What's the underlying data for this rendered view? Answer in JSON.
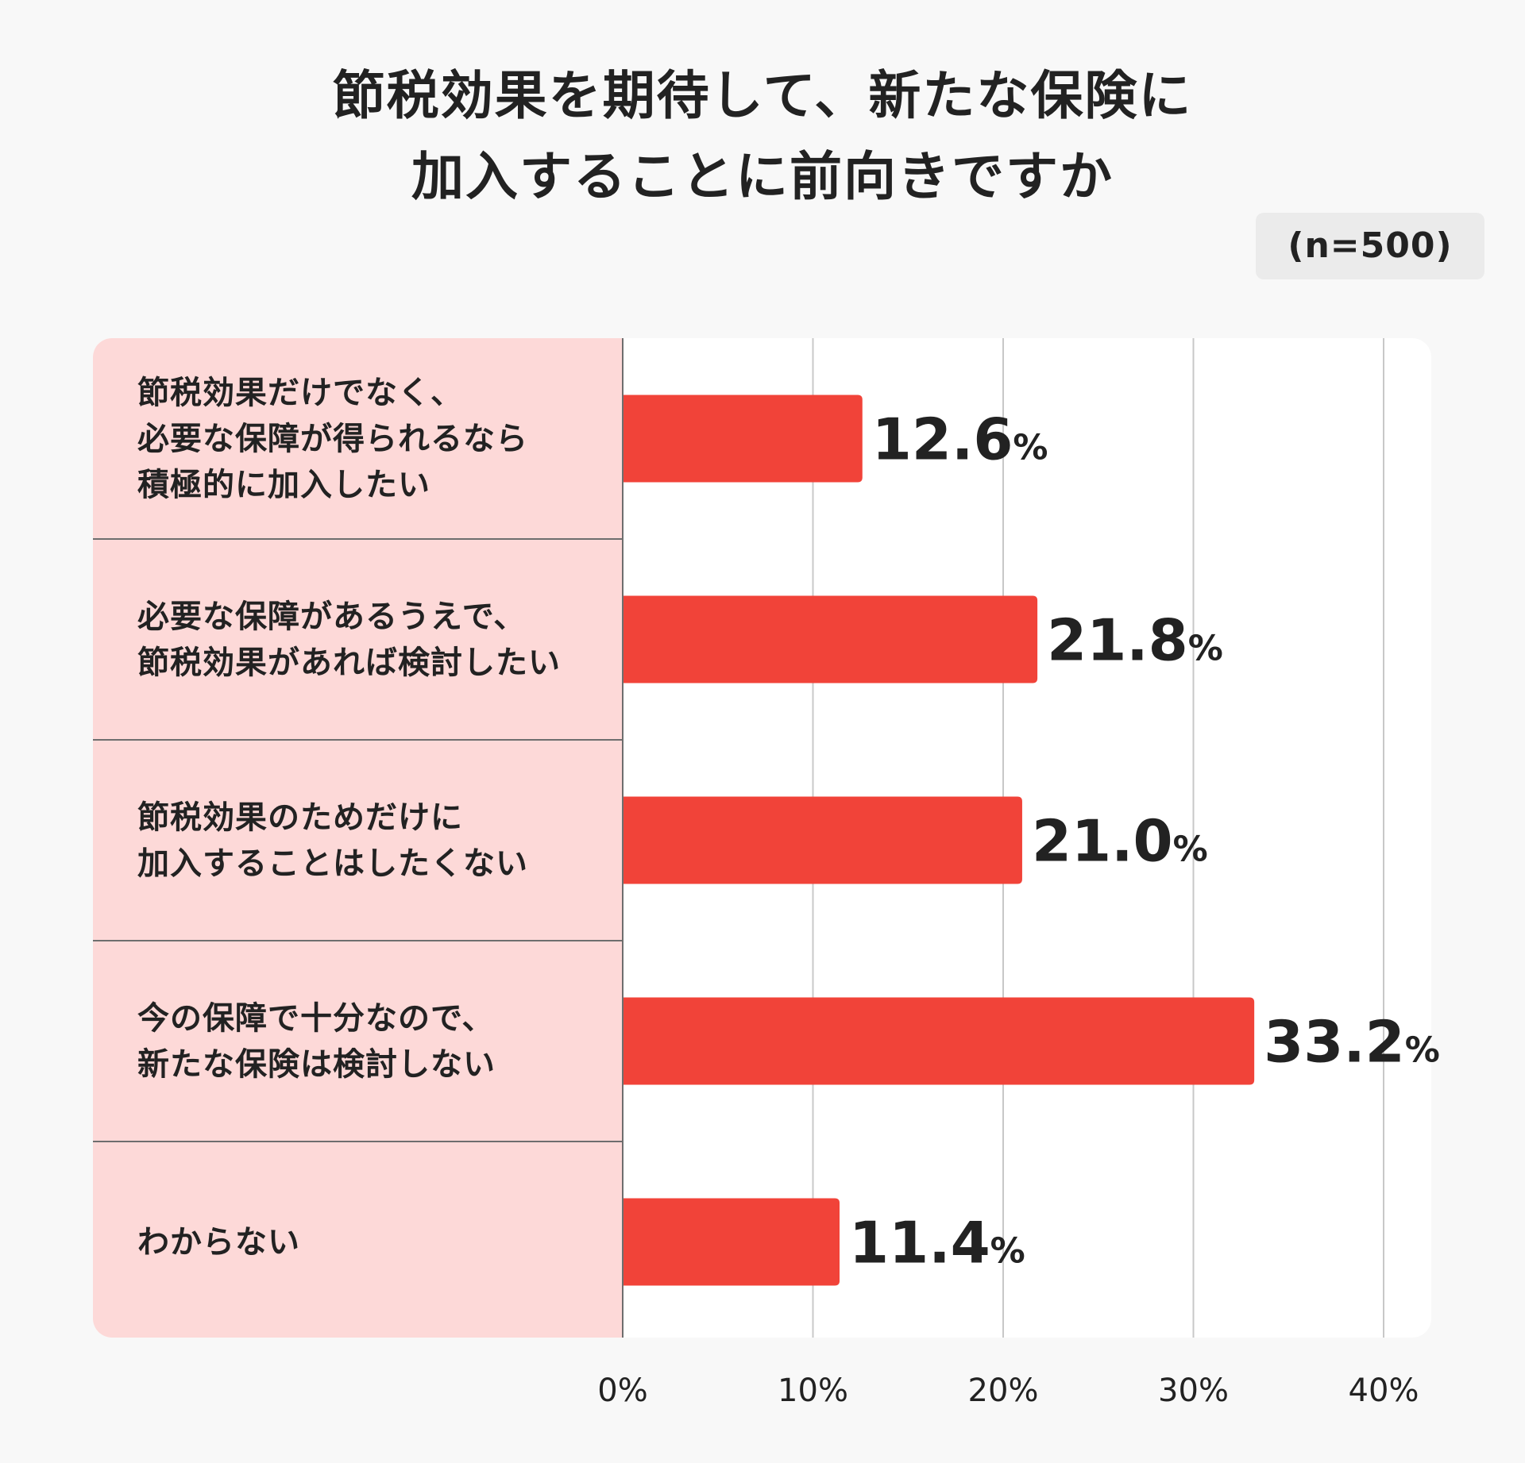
{
  "chart_data": {
    "type": "bar",
    "orientation": "horizontal",
    "title_lines": [
      "節税効果を期待して、新たな保険に",
      "加入することに前向きですか"
    ],
    "sample_label": "(n=500)",
    "categories": [
      "節税効果だけでなく、\n必要な保障が得られるなら\n積極的に加入したい",
      "必要な保障があるうえで、\n節税効果があれば検討したい",
      "節税効果のためだけに\n加入することはしたくない",
      "今の保障で十分なので、\n新たな保険は検討しない",
      "わからない"
    ],
    "values": [
      12.6,
      21.8,
      21.0,
      33.2,
      11.4
    ],
    "value_labels": [
      "12.6",
      "21.8",
      "21.0",
      "33.2",
      "11.4"
    ],
    "value_unit": "%",
    "xlim": [
      0,
      40
    ],
    "xticks": [
      0,
      10,
      20,
      30,
      40
    ],
    "xtick_labels": [
      "0%",
      "10%",
      "20%",
      "30%",
      "40%"
    ],
    "grid": true,
    "bar_color": "#f14339",
    "label_panel_color": "#fdd9d8"
  }
}
